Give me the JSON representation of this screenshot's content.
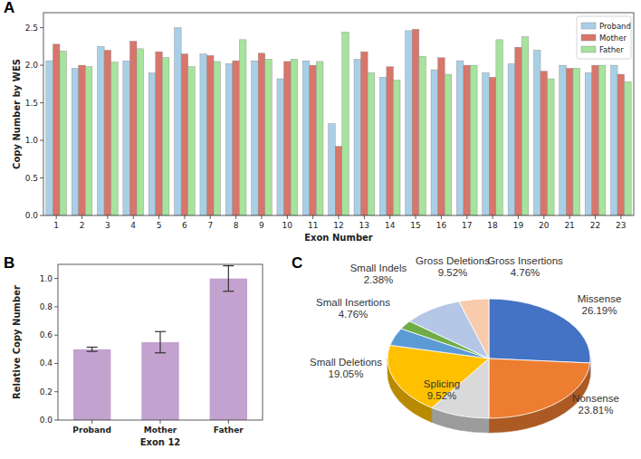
{
  "chart_data": [
    {
      "type": "bar",
      "annotations": [
        "A"
      ],
      "x_label": "Exon Number",
      "y_label": "Copy Number by WES",
      "categories": [
        "1",
        "2",
        "3",
        "4",
        "5",
        "6",
        "7",
        "8",
        "9",
        "10",
        "11",
        "12",
        "13",
        "14",
        "15",
        "16",
        "17",
        "18",
        "19",
        "20",
        "21",
        "22",
        "23"
      ],
      "series": [
        {
          "name": "Proband",
          "color": "#a9cfe6",
          "values": [
            2.06,
            1.96,
            2.25,
            2.06,
            1.9,
            2.5,
            2.15,
            2.02,
            2.06,
            1.82,
            2.06,
            1.22,
            2.08,
            1.84,
            2.46,
            1.94,
            2.06,
            1.9,
            2.02,
            2.2,
            2.0,
            1.9,
            2.0
          ]
        },
        {
          "name": "Mother",
          "color": "#d8766b",
          "values": [
            2.28,
            2.0,
            2.2,
            2.32,
            2.18,
            2.15,
            2.13,
            2.06,
            2.16,
            2.05,
            2.0,
            0.92,
            2.18,
            1.98,
            2.48,
            2.1,
            2.0,
            1.84,
            2.24,
            1.92,
            1.96,
            2.0,
            1.88
          ]
        },
        {
          "name": "Father",
          "color": "#a6e39c",
          "values": [
            2.19,
            1.98,
            2.04,
            2.22,
            2.1,
            1.98,
            2.05,
            2.34,
            2.08,
            2.08,
            2.05,
            2.44,
            1.9,
            1.8,
            2.12,
            1.88,
            2.0,
            2.34,
            2.38,
            1.82,
            1.96,
            2.0,
            1.78
          ]
        }
      ],
      "ylim": [
        0,
        2.7
      ],
      "yticks": [
        {
          "value": 0,
          "label": "0.0"
        },
        0.5,
        {
          "value": 1,
          "label": "1.0"
        },
        1.5,
        {
          "value": 2,
          "label": "2.0"
        },
        2.5
      ],
      "legend": "upper right",
      "grid": false
    },
    {
      "type": "bar",
      "annotations": [
        "B"
      ],
      "x_label": "Exon 12",
      "y_label": "Relative Copy Number",
      "categories": [
        "Proband",
        "Mother",
        "Father"
      ],
      "values": [
        0.5,
        0.55,
        1.0
      ],
      "errors": [
        0.015,
        0.075,
        0.09
      ],
      "color": "#c3a2cf",
      "ylim": [
        0,
        1.1
      ],
      "yticks": [
        {
          "value": 0,
          "label": "0.0"
        },
        0.2,
        0.4,
        0.6,
        0.8,
        {
          "value": 1,
          "label": "1.0"
        }
      ],
      "grid": false
    },
    {
      "type": "pie",
      "annotations": [
        "C"
      ],
      "categories": [
        "Missense",
        "Nonsense",
        "Splicing",
        "Small Deletions",
        "Small Insertions",
        "Small Indels",
        "Gross Deletions",
        "Gross Insertions"
      ],
      "values": [
        26.19,
        23.81,
        9.52,
        19.05,
        4.76,
        2.38,
        9.52,
        4.76
      ],
      "value_labels": [
        "26.19%",
        "23.81%",
        "9.52%",
        "19.05%",
        "4.76%",
        "2.38%",
        "9.52%",
        "4.76%"
      ],
      "colors": [
        "#4472c4",
        "#ed7d31",
        "#d9d9d9",
        "#ffc000",
        "#5b9bd5",
        "#70ad47",
        "#b4c7e7",
        "#f8cbad"
      ],
      "data_labels": true
    }
  ]
}
